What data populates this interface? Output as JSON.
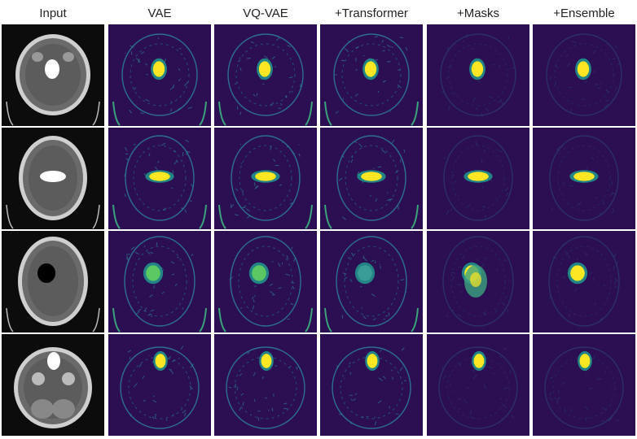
{
  "figure": {
    "columns": [
      {
        "key": "input",
        "label": "Input"
      },
      {
        "key": "vae",
        "label": "VAE"
      },
      {
        "key": "vqvae",
        "label": "VQ-VAE"
      },
      {
        "key": "transformer",
        "label": "+Transformer"
      },
      {
        "key": "masks",
        "label": "+Masks"
      },
      {
        "key": "ensemble",
        "label": "+Ensemble"
      }
    ],
    "rows": 4,
    "colors": {
      "background": "#ffffff",
      "ct_background": "#0c0c0c",
      "heatmap_background": "#2b0f52",
      "heatmap_mid": "#21918c",
      "heatmap_high": "#fde725"
    }
  }
}
